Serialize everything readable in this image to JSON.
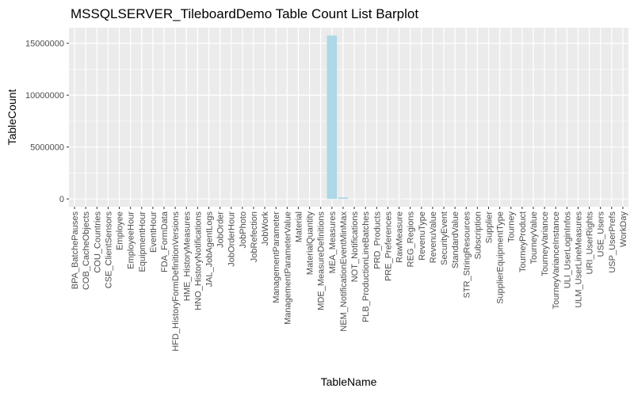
{
  "chart_data": {
    "type": "bar",
    "title": "MSSQLSERVER_TileboardDemo Table Count List Barplot",
    "xlabel": "TableName",
    "ylabel": "TableCount",
    "ylim": [
      -750000,
      16500000
    ],
    "yticks": [
      0,
      5000000,
      10000000,
      15000000
    ],
    "ytick_labels": [
      "0",
      "5000000",
      "10000000",
      "15000000"
    ],
    "grid": true,
    "bar_color": "#add8e6",
    "panel_color": "#ebebeb",
    "grid_color": "#ffffff",
    "categories": [
      "BPA_BatchePauses",
      "COB_CacheObjects",
      "COU_Countries",
      "CSE_ClientSensors",
      "Employee",
      "EmployeeHour",
      "EquipmentHour",
      "EventHour",
      "FDA_FormData",
      "HFD_HistoryFormDefinitionVersions",
      "HME_HistoryMeasures",
      "HNO_HistoryNotifications",
      "JAL_JobAgentLogs",
      "JobOrder",
      "JobOrderHour",
      "JobPhoto",
      "JobRefection",
      "JobWork",
      "ManagementParameter",
      "ManagementParameterValue",
      "Material",
      "MaterialQuantity",
      "MDE_MeasureDefinitions",
      "MEA_Measures",
      "NEM_NotificationEventMinMax",
      "NOT_Notifications",
      "PLB_ProductionLineBatches",
      "PRD_Products",
      "PRE_Preferences",
      "RawMeasure",
      "REG_Regions",
      "RevenuType",
      "RevenuValue",
      "SecurityEvent",
      "StandardValue",
      "STR_StringResources",
      "Subscription",
      "Supplier",
      "SupplierEquipmentType",
      "Tourney",
      "TourneyProduct",
      "TourneyValue",
      "TourneyVariance",
      "TourneyVarianceInstance",
      "ULI_UserLoginInfos",
      "ULM_UserLineMeasures",
      "URI_UserRights",
      "USE_Users",
      "USP_UserPrefs",
      "WorkDay"
    ],
    "values": [
      10,
      50,
      200,
      5,
      30,
      500,
      300,
      200,
      1000,
      100,
      2000,
      5000,
      3000,
      100,
      500,
      50,
      20,
      200,
      30,
      100,
      100,
      200,
      50,
      15750000,
      150000,
      5000,
      100,
      100,
      50,
      10000,
      20,
      10,
      500,
      1000,
      100,
      500,
      10,
      20,
      10,
      20,
      100,
      500,
      100,
      200,
      1000,
      500,
      50,
      50,
      50,
      300
    ]
  }
}
